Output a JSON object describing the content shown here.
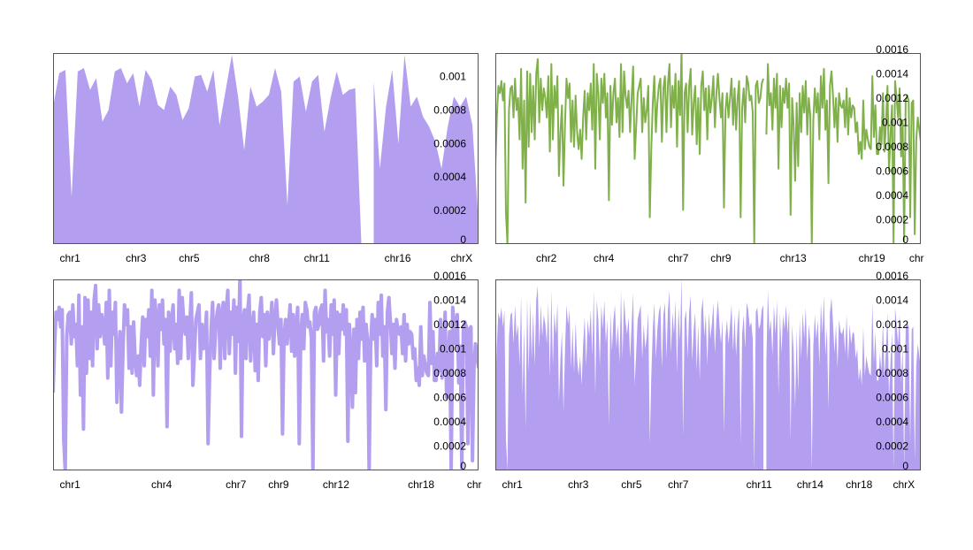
{
  "colors": {
    "purple": "#b39ef0",
    "green": "#7fb04a",
    "frame": "#555555"
  },
  "chart_data": [
    {
      "type": "area",
      "color": "#b39ef0",
      "ylim": [
        0,
        0.00114
      ],
      "yticks": [
        0,
        0.0002,
        0.0004,
        0.0006,
        0.0008,
        0.001
      ],
      "ytick_labels": [
        "0",
        "0.0002",
        "0.0004",
        "0.0006",
        "0.0008",
        "0.001"
      ],
      "xticks": [
        {
          "label": "chr1",
          "pos": 0.04
        },
        {
          "label": "chr3",
          "pos": 0.195
        },
        {
          "label": "chr5",
          "pos": 0.32
        },
        {
          "label": "chr8",
          "pos": 0.485
        },
        {
          "label": "chr11",
          "pos": 0.62
        },
        {
          "label": "chr16",
          "pos": 0.81
        },
        {
          "label": "chrX",
          "pos": 0.96
        }
      ],
      "values": [
        0.00082,
        0.00102,
        0.00104,
        0.00028,
        0.00103,
        0.00105,
        0.00092,
        0.00099,
        0.00073,
        0.0008,
        0.00103,
        0.00105,
        0.00096,
        0.00102,
        0.00082,
        0.00104,
        0.00098,
        0.00083,
        0.0008,
        0.00094,
        0.00089,
        0.00074,
        0.00081,
        0.001,
        0.00101,
        0.00091,
        0.00104,
        0.00071,
        0.00092,
        0.00113,
        0.00088,
        0.00056,
        0.00094,
        0.00082,
        0.00085,
        0.00089,
        0.00105,
        0.00091,
        0.00023,
        0.00097,
        0.001,
        0.00079,
        0.00097,
        0.00101,
        0.00067,
        0.00087,
        0.00103,
        0.00089,
        0.00092,
        0.00093,
        0.0,
        null,
        0.00097,
        0.00045,
        0.00082,
        0.00104,
        0.0006,
        0.00113,
        0.00082,
        0.00088,
        0.00076,
        0.0007,
        0.00061,
        0.00045,
        0.0007,
        0.00088,
        0.00082,
        0.00088,
        0.00071,
        0.00012
      ]
    },
    {
      "type": "line",
      "color": "#7fb04a",
      "ylim": [
        0,
        0.00157
      ],
      "yticks": [
        0,
        0.0002,
        0.0004,
        0.0006,
        0.0008,
        0.001,
        0.0012,
        0.0014,
        0.0016
      ],
      "ytick_labels": [
        "0",
        "0.0002",
        "0.0004",
        "0.0006",
        "0.0008",
        "0.001",
        "0.0012",
        "0.0014",
        "0.0016"
      ],
      "xticks": [
        {
          "label": "chr2",
          "pos": 0.12
        },
        {
          "label": "chr4",
          "pos": 0.255
        },
        {
          "label": "chr7",
          "pos": 0.43
        },
        {
          "label": "chr9",
          "pos": 0.53
        },
        {
          "label": "chr13",
          "pos": 0.7
        },
        {
          "label": "chr19",
          "pos": 0.885
        },
        {
          "label": "chr",
          "pos": 0.99
        }
      ],
      "values": [
        0.00064,
        0.00104,
        0.0013,
        0.00124,
        0.00134,
        0.00118,
        0.00132,
        0.00026,
        0.0,
        0.0011,
        0.00128,
        0.0013,
        0.00104,
        0.00136,
        0.0011,
        0.0012,
        0.00086,
        0.00144,
        0.00062,
        0.00118,
        0.00034,
        0.00142,
        0.0008,
        0.0014,
        0.00092,
        0.0013,
        0.00086,
        0.0014,
        0.00152,
        0.001,
        0.00136,
        0.0011,
        0.00128,
        0.0012,
        0.00104,
        0.00138,
        0.00076,
        0.00148,
        0.00086,
        0.0013,
        0.00112,
        0.00138,
        0.00056,
        0.00092,
        0.00114,
        0.00048,
        0.00098,
        0.00136,
        0.0012,
        0.00132,
        0.00084,
        0.00118,
        0.0008,
        0.00122,
        0.00092,
        0.00078,
        0.00094,
        0.0007,
        0.00104,
        0.00126,
        0.00086,
        0.00124,
        0.0011,
        0.00132,
        0.00094,
        0.00148,
        0.00062,
        0.0014,
        0.00124,
        0.00086,
        0.00136,
        0.00116,
        0.0014,
        0.00104,
        0.00124,
        0.00036,
        0.0013,
        0.00098,
        0.00124,
        0.00136,
        0.001,
        0.0012,
        0.00088,
        0.00148,
        0.00092,
        0.00142,
        0.00122,
        0.00112,
        0.00126,
        0.00092,
        0.0012,
        0.00146,
        0.0007,
        0.00096,
        0.00124,
        0.0013,
        0.00136,
        0.00092,
        0.0012,
        0.001,
        0.0011,
        0.0013,
        0.00022,
        0.00078,
        0.00116,
        0.00138,
        0.00092,
        0.00116,
        0.0013,
        0.00136,
        0.00084,
        0.00128,
        0.00138,
        0.00092,
        0.00132,
        0.00148,
        0.00096,
        0.0013,
        0.00112,
        0.0014,
        0.0008,
        0.00134,
        0.00106,
        0.0016,
        0.00028,
        0.00124,
        0.00132,
        0.00092,
        0.0013,
        0.00144,
        0.0009,
        0.00116,
        0.0013,
        0.00082,
        0.0012,
        0.00074,
        0.0013,
        0.00142,
        0.0011,
        0.00128,
        0.00086,
        0.0013,
        0.00108,
        0.0012,
        0.00138,
        0.00096,
        0.00124,
        0.0014,
        0.0012,
        0.00104,
        0.00124,
        0.0003,
        0.0011,
        0.00124,
        0.00104,
        0.0012,
        0.00136,
        0.00098,
        0.00128,
        0.00094,
        0.0012,
        0.00134,
        0.00022,
        0.00112,
        0.00128,
        0.001,
        0.00138,
        0.00132,
        0.00118,
        0.00122,
        0.00108,
        0.0,
        0.0013,
        0.00134,
        0.00116,
        0.0012,
        0.00132,
        0.00136,
        null,
        0.0009,
        0.00148,
        0.00114,
        0.00124,
        0.00094,
        0.00136,
        0.00112,
        0.0014,
        0.00062,
        0.0013,
        0.00096,
        0.00128,
        0.00116,
        0.00136,
        0.00112,
        0.00132,
        0.00024,
        0.0012,
        0.00098,
        0.00052,
        0.00116,
        0.00064,
        0.00124,
        0.00092,
        0.0013,
        0.00108,
        0.00134,
        0.0009,
        0.0012,
        0.00106,
        0.0,
        0.00102,
        0.00128,
        0.00108,
        0.00124,
        0.00086,
        0.00138,
        0.00112,
        0.00144,
        0.00094,
        0.00118,
        0.0005,
        0.0013,
        0.00142,
        0.00122,
        0.00096,
        0.0012,
        0.00084,
        0.00124,
        0.00114,
        0.00112,
        0.00118,
        0.00096,
        0.00128,
        0.0009,
        0.0012,
        0.00104,
        0.00114,
        0.00112,
        0.00092,
        0.001,
        0.00074,
        0.00084,
        0.0007,
        0.00118,
        0.00078,
        0.00094,
        0.00086,
        0.0008,
        0.00078,
        0.00138,
        0.00088,
        0.00114,
        0.00074,
        0.00074,
        0.00096,
        0.00082,
        0.00124,
        0.00076,
        0.001,
        0.0013,
        0.0006,
        0.0009,
        0.00114,
        0.0,
        0.00134,
        0.0012,
        0.00104,
        0.00128,
        0.00072,
        0.00102,
        2e-05,
        0.00118,
        0.00122,
        0.00118,
        0.00022,
        0.00116,
        0.00118,
        8e-05,
        0.00086,
        0.00104,
        0.00094,
        0.00084
      ]
    },
    {
      "type": "line",
      "color": "#b39ef0",
      "linewidth": 4,
      "ylim": [
        0,
        0.00157
      ],
      "yticks": [
        0,
        0.0002,
        0.0004,
        0.0006,
        0.0008,
        0.001,
        0.0012,
        0.0014,
        0.0016
      ],
      "ytick_labels": [
        "0",
        "0.0002",
        "0.0004",
        "0.0006",
        "0.0008",
        "0.001",
        "0.0012",
        "0.0014",
        "0.0016"
      ],
      "xticks": [
        {
          "label": "chr1",
          "pos": 0.04
        },
        {
          "label": "chr4",
          "pos": 0.255
        },
        {
          "label": "chr7",
          "pos": 0.43
        },
        {
          "label": "chr9",
          "pos": 0.53
        },
        {
          "label": "chr12",
          "pos": 0.665
        },
        {
          "label": "chr18",
          "pos": 0.865
        },
        {
          "label": "chr",
          "pos": 0.99
        }
      ],
      "values": [
        0.00064,
        0.00104,
        0.0013,
        0.00124,
        0.00134,
        0.00118,
        0.00132,
        0.00026,
        0.0,
        0.0011,
        0.00128,
        0.0013,
        0.00104,
        0.00136,
        0.0011,
        0.0012,
        0.00086,
        0.00144,
        0.00062,
        0.00118,
        0.00034,
        0.00142,
        0.0008,
        0.0014,
        0.00092,
        0.0013,
        0.00086,
        0.0014,
        0.00152,
        0.001,
        0.00136,
        0.0011,
        0.00128,
        0.0012,
        0.00104,
        0.00138,
        0.00076,
        0.00148,
        0.00086,
        0.0013,
        0.00112,
        0.00138,
        0.00056,
        0.00092,
        0.00114,
        0.00048,
        0.00098,
        0.00136,
        0.0012,
        0.00132,
        0.00084,
        0.00118,
        0.0008,
        0.00122,
        0.00092,
        0.00078,
        0.00094,
        0.0007,
        0.00104,
        0.00126,
        0.00086,
        0.00124,
        0.0011,
        0.00132,
        0.00094,
        0.00148,
        0.00062,
        0.0014,
        0.00124,
        0.00086,
        0.00136,
        0.00116,
        0.0014,
        0.00104,
        0.00124,
        0.00036,
        0.0013,
        0.00098,
        0.00124,
        0.00136,
        0.001,
        0.0012,
        0.00088,
        0.00148,
        0.00092,
        0.00142,
        0.00122,
        0.00112,
        0.00126,
        0.00092,
        0.0012,
        0.00146,
        0.0007,
        0.00096,
        0.00124,
        0.0013,
        0.00136,
        0.00092,
        0.0012,
        0.001,
        0.0011,
        0.0013,
        0.00022,
        0.00078,
        0.00116,
        0.00138,
        0.00092,
        0.00116,
        0.0013,
        0.00136,
        0.00084,
        0.00128,
        0.00138,
        0.00092,
        0.00132,
        0.00148,
        0.00096,
        0.0013,
        0.00112,
        0.0014,
        0.0008,
        0.00134,
        0.00106,
        0.0016,
        0.00028,
        0.00124,
        0.00132,
        0.00092,
        0.0013,
        0.00144,
        0.0009,
        0.00116,
        0.0013,
        0.00082,
        0.0012,
        0.00074,
        0.0013,
        0.00142,
        0.0011,
        0.00128,
        0.00086,
        0.0013,
        0.00108,
        0.0012,
        0.00138,
        0.00096,
        0.00124,
        0.0014,
        0.0012,
        0.00104,
        0.00124,
        0.0003,
        0.0011,
        0.00124,
        0.00104,
        0.0012,
        0.00136,
        0.00098,
        0.00128,
        0.00094,
        0.0012,
        0.00134,
        0.00022,
        0.00112,
        0.00128,
        0.001,
        0.00138,
        0.00132,
        0.00118,
        0.00122,
        0.00108,
        0.0,
        0.0013,
        0.00134,
        0.00116,
        0.0012,
        0.00132,
        0.00136,
        0.0009,
        0.00148,
        0.00114,
        0.00124,
        0.00094,
        0.00136,
        0.00112,
        0.0014,
        0.00062,
        0.0013,
        0.00096,
        0.00128,
        0.00116,
        0.00136,
        0.00112,
        0.00132,
        0.00024,
        0.0012,
        0.00098,
        0.00052,
        0.00116,
        0.00064,
        0.00124,
        0.00092,
        0.0013,
        0.00108,
        0.00134,
        0.0009,
        0.0012,
        0.00106,
        0.0,
        0.00102,
        0.00128,
        0.00108,
        0.00124,
        0.00086,
        0.00138,
        0.00112,
        0.00144,
        0.00094,
        0.00118,
        0.0005,
        0.0013,
        0.00142,
        0.00122,
        0.00096,
        0.0012,
        0.00084,
        0.00124,
        0.00114,
        0.00112,
        0.00118,
        0.00096,
        0.00128,
        0.0009,
        0.0012,
        0.00104,
        0.00114,
        0.00112,
        0.00092,
        0.001,
        0.00074,
        0.00084,
        0.0007,
        0.00118,
        0.00078,
        0.00094,
        0.00086,
        0.0008,
        0.00078,
        0.00138,
        0.00088,
        0.00114,
        0.00074,
        0.00074,
        0.00096,
        0.00082,
        0.00124,
        0.00076,
        0.001,
        0.0013,
        0.0006,
        0.0009,
        0.00114,
        0.0,
        0.00134,
        0.0012,
        0.00104,
        0.00128,
        0.00072,
        0.00102,
        2e-05,
        0.00118,
        0.00122,
        0.00118,
        0.00022,
        0.00116,
        0.00118,
        8e-05,
        0.00086,
        0.00104,
        0.00094,
        0.00084
      ]
    },
    {
      "type": "area",
      "color": "#b39ef0",
      "ylim": [
        0,
        0.00157
      ],
      "yticks": [
        0,
        0.0002,
        0.0004,
        0.0006,
        0.0008,
        0.001,
        0.0012,
        0.0014,
        0.0016
      ],
      "ytick_labels": [
        "0",
        "0.0002",
        "0.0004",
        "0.0006",
        "0.0008",
        "0.001",
        "0.0012",
        "0.0014",
        "0.0016"
      ],
      "xticks": [
        {
          "label": "chr1",
          "pos": 0.04
        },
        {
          "label": "chr3",
          "pos": 0.195
        },
        {
          "label": "chr5",
          "pos": 0.32
        },
        {
          "label": "chr7",
          "pos": 0.43
        },
        {
          "label": "chr11",
          "pos": 0.62
        },
        {
          "label": "chr14",
          "pos": 0.74
        },
        {
          "label": "chr18",
          "pos": 0.855
        },
        {
          "label": "chrX",
          "pos": 0.96
        }
      ],
      "values": [
        0.00064,
        0.00104,
        0.0013,
        0.00124,
        0.00134,
        0.00118,
        0.00132,
        0.00026,
        0.0,
        0.0011,
        0.00128,
        0.0013,
        0.00104,
        0.00136,
        0.0011,
        0.0012,
        0.00086,
        0.00144,
        0.00062,
        0.00118,
        0.00034,
        0.00142,
        0.0008,
        0.0014,
        0.00092,
        0.0013,
        0.00086,
        0.0014,
        0.00152,
        0.001,
        0.00136,
        0.0011,
        0.00128,
        0.0012,
        0.00104,
        0.00138,
        0.00076,
        0.00148,
        0.00086,
        0.0013,
        0.00112,
        0.00138,
        0.00056,
        0.00092,
        0.00114,
        0.00048,
        0.00098,
        0.00136,
        0.0012,
        0.00132,
        0.00084,
        0.00118,
        0.0008,
        0.00122,
        0.00092,
        0.00078,
        0.00094,
        0.0007,
        0.00104,
        0.00126,
        0.00086,
        0.00124,
        0.0011,
        0.00132,
        0.00094,
        0.00148,
        0.00062,
        0.0014,
        0.00124,
        0.00086,
        0.00136,
        0.00116,
        0.0014,
        0.00104,
        0.00124,
        0.00036,
        0.0013,
        0.00098,
        0.00124,
        0.00136,
        0.001,
        0.0012,
        0.00088,
        0.00148,
        0.00092,
        0.00142,
        0.00122,
        0.00112,
        0.00126,
        0.00092,
        0.0012,
        0.00146,
        0.0007,
        0.00096,
        0.00124,
        0.0013,
        0.00136,
        0.00092,
        0.0012,
        0.001,
        0.0011,
        0.0013,
        0.00022,
        0.00078,
        0.00116,
        0.00138,
        0.00092,
        0.00116,
        0.0013,
        0.00136,
        0.00084,
        0.00128,
        0.00138,
        0.00092,
        0.00132,
        0.00148,
        0.00096,
        0.0013,
        0.00112,
        0.0014,
        0.0008,
        0.00134,
        0.00106,
        0.0016,
        0.00028,
        0.00124,
        0.00132,
        0.00092,
        0.0013,
        0.00144,
        0.0009,
        0.00116,
        0.0013,
        0.00082,
        0.0012,
        0.00074,
        0.0013,
        0.00142,
        0.0011,
        0.00128,
        0.00086,
        0.0013,
        0.00108,
        0.0012,
        0.00138,
        0.00096,
        0.00124,
        0.0014,
        0.0012,
        0.00104,
        0.00124,
        0.0003,
        0.0011,
        0.00124,
        0.00104,
        0.0012,
        0.00136,
        0.00098,
        0.00128,
        0.00094,
        0.0012,
        0.00134,
        0.00022,
        0.00112,
        0.00128,
        0.001,
        0.00138,
        0.00132,
        0.00118,
        0.00122,
        0.00108,
        0.0,
        0.0013,
        0.00134,
        0.00116,
        0.0012,
        0.00132,
        0.00136,
        null,
        0.0009,
        0.00148,
        0.00114,
        0.00124,
        0.00094,
        0.00136,
        0.00112,
        0.0014,
        0.00062,
        0.0013,
        0.00096,
        0.00128,
        0.00116,
        0.00136,
        0.00112,
        0.00132,
        0.00024,
        0.0012,
        0.00098,
        0.00052,
        0.00116,
        0.00064,
        0.00124,
        0.00092,
        0.0013,
        0.00108,
        0.00134,
        0.0009,
        0.0012,
        0.00106,
        0.0,
        0.00102,
        0.00128,
        0.00108,
        0.00124,
        0.00086,
        0.00138,
        0.00112,
        0.00144,
        0.00094,
        0.00118,
        0.0005,
        0.0013,
        0.00142,
        0.00122,
        0.00096,
        0.0012,
        0.00084,
        0.00124,
        0.00114,
        0.00112,
        0.00118,
        0.00096,
        0.00128,
        0.0009,
        0.0012,
        0.00104,
        0.00114,
        0.00112,
        0.00092,
        0.001,
        0.00074,
        0.00084,
        0.0007,
        0.00118,
        0.00078,
        0.00094,
        0.00086,
        0.0008,
        0.00078,
        0.00138,
        0.00088,
        0.00114,
        0.00074,
        0.00074,
        0.00096,
        0.00082,
        0.00124,
        0.00076,
        0.001,
        0.0013,
        0.0006,
        0.0009,
        0.00114,
        0.0,
        0.00134,
        0.0012,
        0.00104,
        0.00128,
        0.00072,
        0.00102,
        2e-05,
        0.00118,
        0.00122,
        0.00118,
        0.00022,
        0.00116,
        0.00118,
        8e-05,
        0.00086,
        0.00104,
        0.00094,
        0.00084
      ]
    }
  ]
}
